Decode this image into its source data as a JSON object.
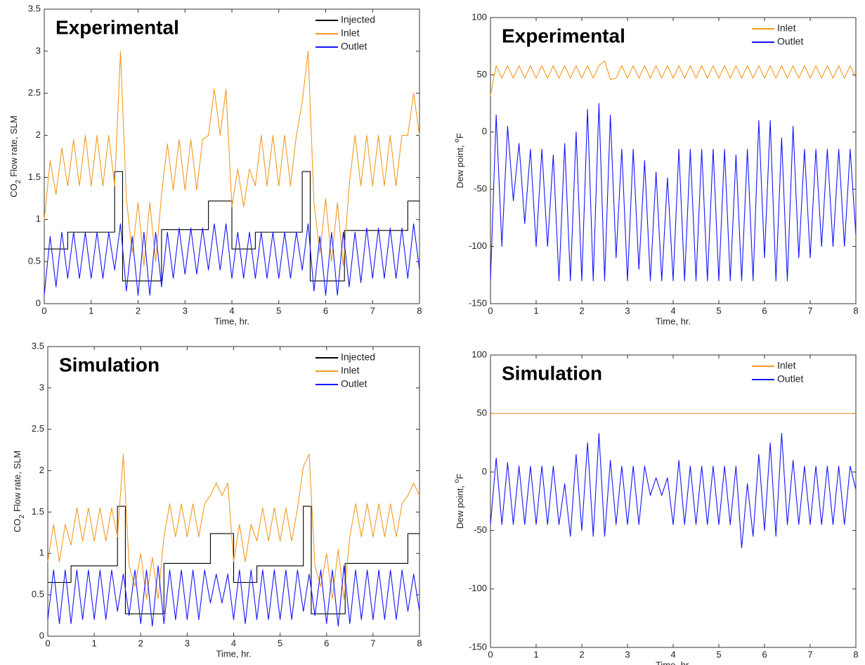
{
  "chart_data": [
    {
      "type": "line",
      "title": "Experimental",
      "xlabel": "Time, hr.",
      "ylabel": [
        "CO",
        "2",
        "Flow rate, SLM"
      ],
      "xlim": [
        0,
        8
      ],
      "xticks": [
        0,
        1,
        2,
        3,
        4,
        5,
        6,
        7,
        8
      ],
      "ylim": [
        0,
        3.5
      ],
      "yticks": [
        0,
        0.5,
        1,
        1.5,
        2,
        2.5,
        3,
        3.5
      ],
      "legend": "upper right",
      "x": [
        0,
        0.125,
        0.25,
        0.375,
        0.5,
        0.625,
        0.75,
        0.875,
        1,
        1.125,
        1.25,
        1.375,
        1.5,
        1.625,
        1.75,
        1.875,
        2,
        2.125,
        2.25,
        2.375,
        2.5,
        2.625,
        2.75,
        2.875,
        3,
        3.125,
        3.25,
        3.375,
        3.5,
        3.625,
        3.75,
        3.875,
        4,
        4.125,
        4.25,
        4.375,
        4.5,
        4.625,
        4.75,
        4.875,
        5,
        5.125,
        5.25,
        5.375,
        5.5,
        5.625,
        5.75,
        5.875,
        6,
        6.125,
        6.25,
        6.375,
        6.5,
        6.625,
        6.75,
        6.875,
        7,
        7.125,
        7.25,
        7.375,
        7.5,
        7.625,
        7.75,
        7.875,
        8
      ],
      "series": [
        {
          "name": "Injected",
          "color": "#000000",
          "x": [
            0,
            0.5,
            0.5,
            1.5,
            1.5,
            1.67,
            1.67,
            2.5,
            2.5,
            3.5,
            3.5,
            4,
            4,
            4.5,
            4.5,
            5.5,
            5.5,
            5.67,
            5.67,
            6.4,
            6.4,
            7.75,
            7.75,
            8
          ],
          "values": [
            0.65,
            0.65,
            0.85,
            0.85,
            1.57,
            1.57,
            0.27,
            0.27,
            0.88,
            0.88,
            1.22,
            1.22,
            0.65,
            0.65,
            0.85,
            0.85,
            1.57,
            1.57,
            0.27,
            0.27,
            0.87,
            0.87,
            1.22,
            1.22
          ]
        },
        {
          "name": "Inlet",
          "color": "#f39a1e",
          "values": [
            1.0,
            1.7,
            1.3,
            1.85,
            1.4,
            1.95,
            1.4,
            2.0,
            1.4,
            2.0,
            1.4,
            2.0,
            1.4,
            3.0,
            1.25,
            0.6,
            1.2,
            0.45,
            1.2,
            0.5,
            1.3,
            1.9,
            1.35,
            1.95,
            1.35,
            1.95,
            1.35,
            1.95,
            2.0,
            2.55,
            2.0,
            2.55,
            1.15,
            1.6,
            1.15,
            1.6,
            1.4,
            2.0,
            1.4,
            2.0,
            1.4,
            2.0,
            1.4,
            2.0,
            2.4,
            3.0,
            1.2,
            0.6,
            1.25,
            0.5,
            1.2,
            0.45,
            1.4,
            2.0,
            1.4,
            2.0,
            1.4,
            2.0,
            1.4,
            2.0,
            1.4,
            2.0,
            2.0,
            2.5,
            2.0
          ]
        },
        {
          "name": "Outlet",
          "color": "#1515ff",
          "values": [
            0.1,
            0.8,
            0.2,
            0.85,
            0.3,
            0.85,
            0.3,
            0.85,
            0.3,
            0.85,
            0.3,
            0.85,
            0.4,
            0.95,
            0.15,
            0.8,
            0.1,
            0.85,
            0.1,
            0.85,
            0.2,
            0.85,
            0.3,
            0.9,
            0.35,
            0.9,
            0.35,
            0.9,
            0.4,
            0.95,
            0.4,
            0.95,
            0.3,
            0.85,
            0.3,
            0.85,
            0.3,
            0.85,
            0.3,
            0.85,
            0.3,
            0.85,
            0.3,
            0.85,
            0.4,
            0.95,
            0.15,
            0.8,
            0.1,
            0.85,
            0.1,
            0.85,
            0.2,
            0.85,
            0.25,
            0.9,
            0.3,
            0.9,
            0.3,
            0.9,
            0.3,
            0.9,
            0.3,
            0.95,
            0.4
          ]
        }
      ]
    },
    {
      "type": "line",
      "title": "Experimental",
      "xlabel": "Time, hr.",
      "ylabel": [
        "Dew point, ",
        "o",
        "F"
      ],
      "xlim": [
        0,
        8
      ],
      "xticks": [
        0,
        1,
        2,
        3,
        4,
        5,
        6,
        7,
        8
      ],
      "ylim": [
        -150,
        100
      ],
      "yticks": [
        -150,
        -100,
        -50,
        0,
        50,
        100
      ],
      "legend": "upper right",
      "x": [
        0,
        0.125,
        0.25,
        0.375,
        0.5,
        0.625,
        0.75,
        0.875,
        1,
        1.125,
        1.25,
        1.375,
        1.5,
        1.625,
        1.75,
        1.875,
        2,
        2.125,
        2.25,
        2.375,
        2.5,
        2.625,
        2.75,
        2.875,
        3,
        3.125,
        3.25,
        3.375,
        3.5,
        3.625,
        3.75,
        3.875,
        4,
        4.125,
        4.25,
        4.375,
        4.5,
        4.625,
        4.75,
        4.875,
        5,
        5.125,
        5.25,
        5.375,
        5.5,
        5.625,
        5.75,
        5.875,
        6,
        6.125,
        6.25,
        6.375,
        6.5,
        6.625,
        6.75,
        6.875,
        7,
        7.125,
        7.25,
        7.375,
        7.5,
        7.625,
        7.75,
        7.875,
        8
      ],
      "series": [
        {
          "name": "Inlet",
          "color": "#f39a1e",
          "values": [
            32,
            58,
            47,
            58,
            47,
            58,
            47,
            58,
            47,
            58,
            47,
            58,
            47,
            58,
            47,
            58,
            47,
            58,
            47,
            58,
            62,
            46,
            47,
            58,
            47,
            58,
            47,
            58,
            47,
            58,
            47,
            58,
            47,
            58,
            47,
            58,
            47,
            58,
            47,
            58,
            47,
            58,
            47,
            58,
            47,
            58,
            47,
            58,
            47,
            58,
            47,
            58,
            47,
            58,
            47,
            58,
            47,
            58,
            47,
            58,
            47,
            58,
            47,
            58,
            47
          ]
        },
        {
          "name": "Outlet",
          "color": "#1515ff",
          "values": [
            -130,
            15,
            -100,
            5,
            -60,
            -10,
            -80,
            -15,
            -100,
            -15,
            -100,
            -20,
            -130,
            -10,
            -130,
            0,
            -130,
            20,
            -130,
            25,
            -130,
            15,
            -110,
            -15,
            -130,
            -15,
            -120,
            -25,
            -130,
            -35,
            -130,
            -40,
            -130,
            -15,
            -130,
            -15,
            -130,
            -15,
            -130,
            -15,
            -130,
            -15,
            -130,
            -20,
            -130,
            -15,
            -130,
            10,
            -110,
            10,
            -130,
            -5,
            -130,
            5,
            -110,
            -15,
            -110,
            -15,
            -100,
            -15,
            -100,
            -15,
            -100,
            -15,
            -90
          ]
        }
      ]
    },
    {
      "type": "line",
      "title": "Simulation",
      "xlabel": "Time, hr.",
      "ylabel": [
        "CO",
        "2",
        "Flow rate, SLM"
      ],
      "xlim": [
        0,
        8
      ],
      "xticks": [
        0,
        1,
        2,
        3,
        4,
        5,
        6,
        7,
        8
      ],
      "ylim": [
        0,
        3.5
      ],
      "yticks": [
        0,
        0.5,
        1,
        1.5,
        2,
        2.5,
        3,
        3.5
      ],
      "legend": "upper right",
      "x": [
        0,
        0.125,
        0.25,
        0.375,
        0.5,
        0.625,
        0.75,
        0.875,
        1,
        1.125,
        1.25,
        1.375,
        1.5,
        1.625,
        1.75,
        1.875,
        2,
        2.125,
        2.25,
        2.375,
        2.5,
        2.625,
        2.75,
        2.875,
        3,
        3.125,
        3.25,
        3.375,
        3.5,
        3.625,
        3.75,
        3.875,
        4,
        4.125,
        4.25,
        4.375,
        4.5,
        4.625,
        4.75,
        4.875,
        5,
        5.125,
        5.25,
        5.375,
        5.5,
        5.625,
        5.75,
        5.875,
        6,
        6.125,
        6.25,
        6.375,
        6.5,
        6.625,
        6.75,
        6.875,
        7,
        7.125,
        7.25,
        7.375,
        7.5,
        7.625,
        7.75,
        7.875,
        8
      ],
      "series": [
        {
          "name": "Injected",
          "color": "#000000",
          "x": [
            0,
            0.5,
            0.5,
            1.5,
            1.5,
            1.67,
            1.67,
            2.5,
            2.5,
            3.5,
            3.5,
            4,
            4,
            4.5,
            4.5,
            5.5,
            5.5,
            5.67,
            5.67,
            6.4,
            6.4,
            7.75,
            7.75,
            8
          ],
          "values": [
            0.65,
            0.65,
            0.85,
            0.85,
            1.57,
            1.57,
            0.27,
            0.27,
            0.88,
            0.88,
            1.24,
            1.24,
            0.65,
            0.65,
            0.85,
            0.85,
            1.57,
            1.57,
            0.27,
            0.27,
            0.88,
            0.88,
            1.24,
            1.24
          ]
        },
        {
          "name": "Inlet",
          "color": "#f39a1e",
          "values": [
            0.9,
            1.35,
            0.9,
            1.35,
            1.1,
            1.55,
            1.15,
            1.55,
            1.15,
            1.55,
            1.15,
            1.55,
            1.2,
            2.2,
            0.85,
            0.6,
            1.0,
            0.45,
            0.95,
            0.45,
            1.2,
            1.6,
            1.2,
            1.6,
            1.2,
            1.6,
            1.2,
            1.6,
            1.7,
            1.85,
            1.7,
            1.85,
            0.9,
            1.35,
            0.9,
            1.35,
            1.15,
            1.55,
            1.15,
            1.55,
            1.15,
            1.55,
            1.15,
            1.55,
            2.05,
            2.2,
            0.85,
            0.6,
            1.0,
            0.45,
            1.05,
            0.45,
            1.2,
            1.6,
            1.2,
            1.6,
            1.2,
            1.6,
            1.2,
            1.6,
            1.2,
            1.6,
            1.7,
            1.85,
            1.7
          ]
        },
        {
          "name": "Outlet",
          "color": "#1515ff",
          "values": [
            0.2,
            0.8,
            0.15,
            0.8,
            0.15,
            0.8,
            0.2,
            0.8,
            0.2,
            0.8,
            0.2,
            0.8,
            0.3,
            0.75,
            0.25,
            0.8,
            0.15,
            0.8,
            0.12,
            0.85,
            0.15,
            0.8,
            0.2,
            0.8,
            0.2,
            0.8,
            0.2,
            0.8,
            0.4,
            0.75,
            0.4,
            0.75,
            0.2,
            0.8,
            0.15,
            0.8,
            0.2,
            0.8,
            0.2,
            0.8,
            0.2,
            0.8,
            0.2,
            0.8,
            0.3,
            0.75,
            0.25,
            0.8,
            0.15,
            0.8,
            0.12,
            0.85,
            0.15,
            0.8,
            0.2,
            0.8,
            0.2,
            0.8,
            0.2,
            0.8,
            0.2,
            0.8,
            0.3,
            0.75,
            0.3
          ]
        }
      ]
    },
    {
      "type": "line",
      "title": "Simulation",
      "xlabel": "Time, hr.",
      "ylabel": [
        "Dew point, ",
        "o",
        "F"
      ],
      "xlim": [
        0,
        8
      ],
      "xticks": [
        0,
        1,
        2,
        3,
        4,
        5,
        6,
        7,
        8
      ],
      "ylim": [
        -150,
        100
      ],
      "yticks": [
        -150,
        -100,
        -50,
        0,
        50,
        100
      ],
      "legend": "upper right",
      "x": [
        0,
        0.125,
        0.25,
        0.375,
        0.5,
        0.625,
        0.75,
        0.875,
        1,
        1.125,
        1.25,
        1.375,
        1.5,
        1.625,
        1.75,
        1.875,
        2,
        2.125,
        2.25,
        2.375,
        2.5,
        2.625,
        2.75,
        2.875,
        3,
        3.125,
        3.25,
        3.375,
        3.5,
        3.625,
        3.75,
        3.875,
        4,
        4.125,
        4.25,
        4.375,
        4.5,
        4.625,
        4.75,
        4.875,
        5,
        5.125,
        5.25,
        5.375,
        5.5,
        5.625,
        5.75,
        5.875,
        6,
        6.125,
        6.25,
        6.375,
        6.5,
        6.625,
        6.75,
        6.875,
        7,
        7.125,
        7.25,
        7.375,
        7.5,
        7.625,
        7.75,
        7.875,
        8
      ],
      "series": [
        {
          "name": "Inlet",
          "color": "#f39a1e",
          "x": [
            0,
            8
          ],
          "values": [
            50,
            50
          ]
        },
        {
          "name": "Outlet",
          "color": "#1515ff",
          "values": [
            -45,
            12,
            -45,
            8,
            -45,
            5,
            -45,
            5,
            -45,
            5,
            -45,
            5,
            -45,
            -10,
            -55,
            15,
            -50,
            25,
            -55,
            33,
            -55,
            10,
            -45,
            5,
            -45,
            5,
            -45,
            5,
            -20,
            -5,
            -20,
            -5,
            -45,
            10,
            -45,
            5,
            -45,
            5,
            -45,
            5,
            -45,
            5,
            -45,
            5,
            -65,
            -10,
            -55,
            15,
            -50,
            25,
            -55,
            33,
            -45,
            10,
            -45,
            5,
            -45,
            5,
            -45,
            5,
            -45,
            5,
            -45,
            5,
            -15
          ]
        }
      ]
    }
  ]
}
